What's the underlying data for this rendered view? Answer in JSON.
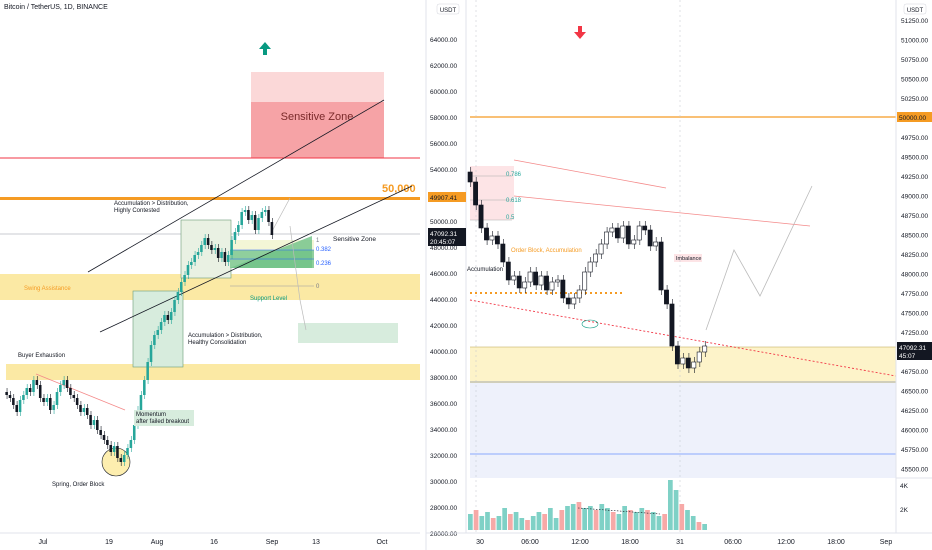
{
  "left_chart": {
    "symbol_title": "Bitcoin / TetherUS, 1D, BINANCE",
    "level_50k": "50,000",
    "sensitive_zone_big": "Sensitive Zone",
    "sensitive_zone_small": "Sensitive Zone",
    "fib_levels": [
      "1",
      "0.382",
      "0.236",
      "0"
    ],
    "annotations": {
      "acc_dist_top": "Accumulation > Distribution,\nHighly Contested",
      "acc_dist_mid": "Accumulation > Distribution,\nHealthy Consolidation",
      "swing_assistance": "Swing Assistance",
      "support_level": "Support Level",
      "buyer_exhaustion": "Buyer Exhaustion",
      "momentum": "Momentum\nafter failed breakout",
      "spring": "Spring, Order Block"
    },
    "time_labels": [
      "Jul",
      "19",
      "Aug",
      "16",
      "Sep",
      "13",
      "Oct"
    ],
    "colors": {
      "up": "#26a69a",
      "down": "#131722",
      "orange": "#f59b23",
      "red_zone": "#f23645",
      "yellow": "#fbe27a"
    }
  },
  "right_chart": {
    "axis_unit": "USDT",
    "left_axis_ticks": [
      "64000.00",
      "62000.00",
      "60000.00",
      "58000.00",
      "56000.00",
      "54000.00",
      "52000.00",
      "50000.00",
      "48000.00",
      "46000.00",
      "44000.00",
      "42000.00",
      "40000.00",
      "38000.00",
      "36000.00",
      "34000.00",
      "32000.00",
      "30000.00",
      "28000.00",
      "26000.00"
    ],
    "right_axis_ticks": [
      "51250.00",
      "51000.00",
      "50750.00",
      "50500.00",
      "50250.00",
      "50000.00",
      "49750.00",
      "49500.00",
      "49250.00",
      "49000.00",
      "48750.00",
      "48500.00",
      "48250.00",
      "48000.00",
      "47750.00",
      "47500.00",
      "47250.00",
      "47000.00",
      "46750.00",
      "46500.00",
      "46250.00",
      "46000.00",
      "45750.00",
      "45500.00"
    ],
    "price_tag_left": {
      "price": "49907.41",
      "value": "47092.31",
      "timer": "20:45:07"
    },
    "price_tag_right": {
      "value": "47092.31",
      "timer": "45:07",
      "level": "50000.00"
    },
    "volume_ticks": [
      "4K",
      "2K"
    ],
    "fib_levels": [
      "0.786",
      "0.618",
      "0.5"
    ],
    "annotations": {
      "order_block": "Order Block, Accumulation",
      "accumulation": "Accumulation",
      "imbalance": "Imbalance"
    },
    "time_labels": [
      "30",
      "06:00",
      "12:00",
      "18:00",
      "31",
      "06:00",
      "12:00",
      "18:00",
      "Sep"
    ]
  }
}
